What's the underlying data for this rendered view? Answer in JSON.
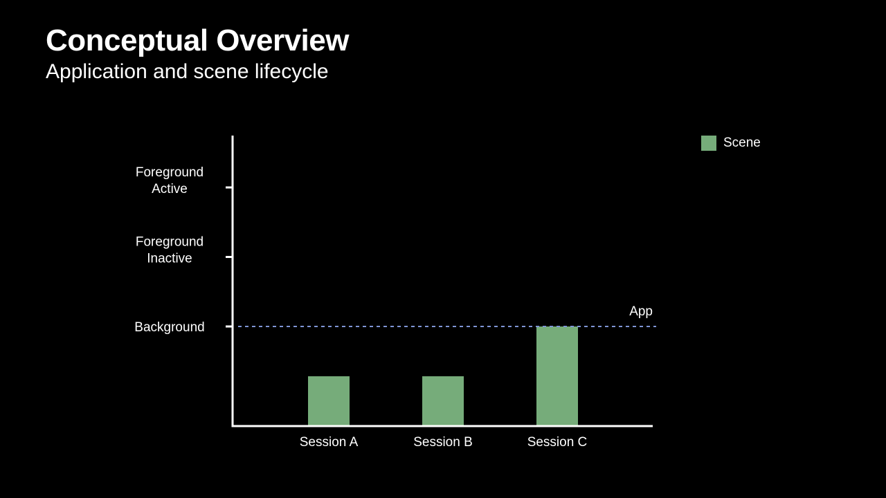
{
  "slide": {
    "title": "Conceptual Overview",
    "subtitle": "Application and scene lifecycle"
  },
  "chart_data": {
    "type": "bar",
    "categories": [
      "Session A",
      "Session B",
      "Session C"
    ],
    "y_levels": [
      {
        "label_lines": [
          "Foreground",
          "Active"
        ],
        "value": 3
      },
      {
        "label_lines": [
          "Foreground",
          "Inactive"
        ],
        "value": 2
      },
      {
        "label_lines": [
          "Background"
        ],
        "value": 1
      }
    ],
    "series": [
      {
        "name": "Scene",
        "color": "#76ac7a",
        "values": [
          0.5,
          0.5,
          1
        ]
      }
    ],
    "reference_line": {
      "label": "App",
      "value": 1,
      "style": "dashed",
      "color": "#7f95d6"
    },
    "ylim": [
      0,
      3.7
    ],
    "legend_position": "top-right",
    "grid": false
  }
}
